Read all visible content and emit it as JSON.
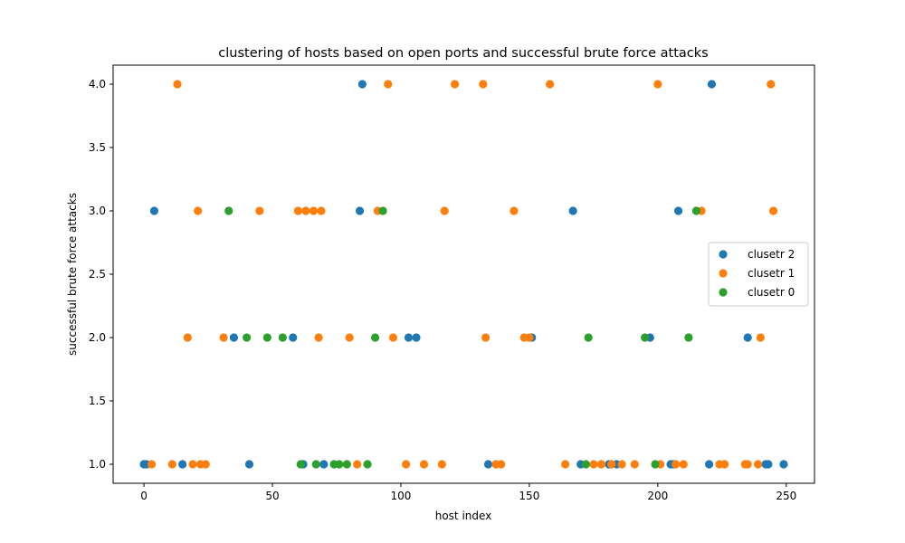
{
  "chart_data": {
    "type": "scatter",
    "title": "clustering of hosts based on open ports and successful brute force attacks",
    "xlabel": "host index",
    "ylabel": "successful brute force attacks",
    "xlim": [
      -12,
      261
    ],
    "ylim": [
      0.85,
      4.15
    ],
    "xticks": [
      0,
      50,
      100,
      150,
      200,
      250
    ],
    "yticks": [
      1.0,
      1.5,
      2.0,
      2.5,
      3.0,
      3.5,
      4.0
    ],
    "ytick_labels": [
      "1.0",
      "1.5",
      "2.0",
      "2.5",
      "3.0",
      "3.5",
      "4.0"
    ],
    "grid": false,
    "legend_position": "center-right",
    "series": [
      {
        "name": "clusetr 2",
        "color": "#1f77b4",
        "points": [
          [
            0,
            1
          ],
          [
            1,
            1
          ],
          [
            4,
            3
          ],
          [
            15,
            1
          ],
          [
            35,
            2
          ],
          [
            41,
            1
          ],
          [
            58,
            2
          ],
          [
            62,
            1
          ],
          [
            70,
            1
          ],
          [
            84,
            3
          ],
          [
            85,
            4
          ],
          [
            103,
            2
          ],
          [
            106,
            2
          ],
          [
            134,
            1
          ],
          [
            151,
            2
          ],
          [
            167,
            3
          ],
          [
            170,
            1
          ],
          [
            181,
            1
          ],
          [
            184,
            1
          ],
          [
            197,
            2
          ],
          [
            205,
            1
          ],
          [
            206,
            1
          ],
          [
            208,
            3
          ],
          [
            220,
            1
          ],
          [
            221,
            4
          ],
          [
            235,
            2
          ],
          [
            242,
            1
          ],
          [
            243,
            1
          ],
          [
            249,
            1
          ]
        ]
      },
      {
        "name": "clusetr 1",
        "color": "#ff7f0e",
        "points": [
          [
            3,
            1
          ],
          [
            11,
            1
          ],
          [
            13,
            4
          ],
          [
            17,
            2
          ],
          [
            19,
            1
          ],
          [
            21,
            3
          ],
          [
            22,
            1
          ],
          [
            24,
            1
          ],
          [
            31,
            2
          ],
          [
            45,
            3
          ],
          [
            60,
            3
          ],
          [
            63,
            3
          ],
          [
            66,
            3
          ],
          [
            68,
            2
          ],
          [
            69,
            3
          ],
          [
            80,
            2
          ],
          [
            83,
            1
          ],
          [
            91,
            3
          ],
          [
            95,
            4
          ],
          [
            97,
            2
          ],
          [
            102,
            1
          ],
          [
            109,
            1
          ],
          [
            116,
            1
          ],
          [
            117,
            3
          ],
          [
            121,
            4
          ],
          [
            132,
            4
          ],
          [
            133,
            2
          ],
          [
            137,
            1
          ],
          [
            139,
            1
          ],
          [
            144,
            3
          ],
          [
            148,
            2
          ],
          [
            150,
            2
          ],
          [
            158,
            4
          ],
          [
            164,
            1
          ],
          [
            175,
            1
          ],
          [
            178,
            1
          ],
          [
            182,
            1
          ],
          [
            186,
            1
          ],
          [
            191,
            1
          ],
          [
            200,
            4
          ],
          [
            201,
            1
          ],
          [
            207,
            1
          ],
          [
            210,
            1
          ],
          [
            217,
            3
          ],
          [
            224,
            1
          ],
          [
            226,
            1
          ],
          [
            234,
            1
          ],
          [
            235,
            1
          ],
          [
            239,
            1
          ],
          [
            240,
            2
          ],
          [
            244,
            4
          ],
          [
            245,
            3
          ]
        ]
      },
      {
        "name": "clusetr 0",
        "color": "#2ca02c",
        "points": [
          [
            33,
            3
          ],
          [
            40,
            2
          ],
          [
            48,
            2
          ],
          [
            54,
            2
          ],
          [
            61,
            1
          ],
          [
            67,
            1
          ],
          [
            74,
            1
          ],
          [
            76,
            1
          ],
          [
            79,
            1
          ],
          [
            87,
            1
          ],
          [
            90,
            2
          ],
          [
            93,
            3
          ],
          [
            172,
            1
          ],
          [
            173,
            2
          ],
          [
            195,
            2
          ],
          [
            199,
            1
          ],
          [
            212,
            2
          ],
          [
            215,
            3
          ]
        ]
      }
    ]
  }
}
